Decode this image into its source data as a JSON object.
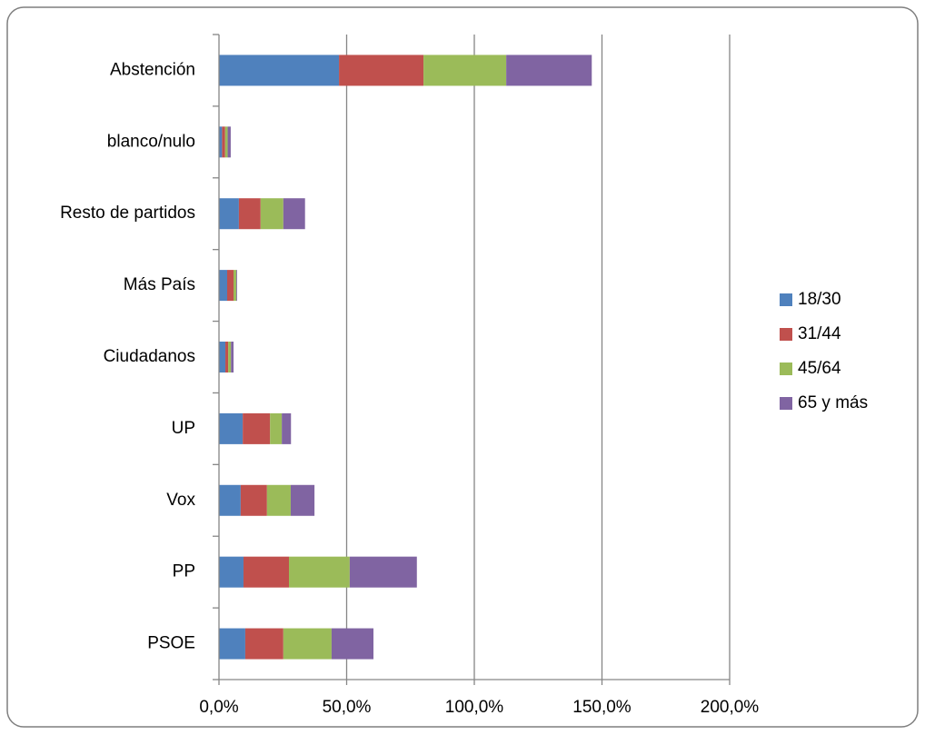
{
  "chart_data": {
    "type": "stacked-barh",
    "categories": [
      "PSOE",
      "PP",
      "Vox",
      "UP",
      "Ciudadanos",
      "Más País",
      "Resto de partidos",
      "blanco/nulo",
      "Abstención"
    ],
    "series": [
      {
        "name": "18/30",
        "color": "#4f81bd",
        "values": [
          10.3,
          9.6,
          8.5,
          9.3,
          2.5,
          3.2,
          7.8,
          1.2,
          47.0
        ]
      },
      {
        "name": "31/44",
        "color": "#c0504d",
        "values": [
          14.9,
          17.8,
          10.3,
          10.7,
          1.1,
          2.5,
          8.5,
          1.2,
          33.1
        ]
      },
      {
        "name": "45/64",
        "color": "#9bbb59",
        "values": [
          18.9,
          23.8,
          9.3,
          4.6,
          1.1,
          1.1,
          8.9,
          1.0,
          32.4
        ]
      },
      {
        "name": "65 y más",
        "color": "#8064a2",
        "values": [
          16.4,
          26.3,
          9.3,
          3.6,
          1.0,
          0.3,
          8.5,
          1.2,
          33.5
        ]
      }
    ],
    "xlim": [
      0,
      200
    ],
    "xticks": [
      {
        "value": 0,
        "label": "0,0%"
      },
      {
        "value": 50,
        "label": "50,0%"
      },
      {
        "value": 100,
        "label": "100,0%"
      },
      {
        "value": 150,
        "label": "150,0%"
      },
      {
        "value": 200,
        "label": "200,0%"
      }
    ],
    "grid": true,
    "legend": "right"
  }
}
